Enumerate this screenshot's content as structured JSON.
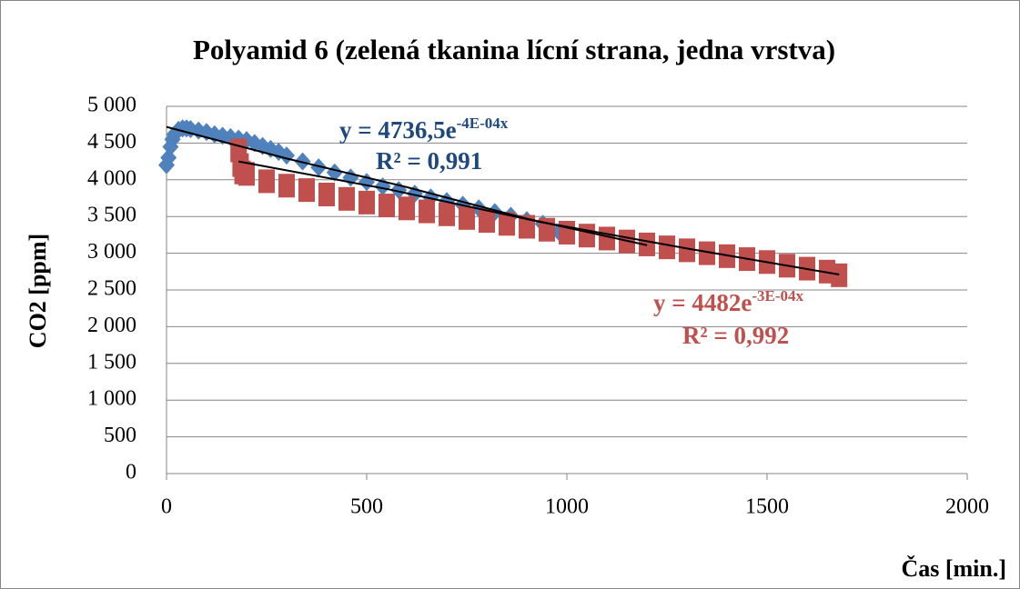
{
  "chart_data": {
    "type": "scatter",
    "title": "Polyamid 6 (zelená tkanina lícní strana, jedna vrstva)",
    "x_label": "Čas [min.]",
    "y_label": "CO2 [ppm]",
    "xlim": [
      0,
      2000
    ],
    "xticks": [
      0,
      500,
      1000,
      1500,
      2000
    ],
    "ylim": [
      0,
      5000
    ],
    "yticks": [
      0,
      500,
      {
        "value": 1000,
        "label": "1 000"
      },
      {
        "value": 1500,
        "label": "1 500"
      },
      {
        "value": 2000,
        "label": "2 000"
      },
      {
        "value": 2500,
        "label": "2 500"
      },
      {
        "value": 3000,
        "label": "3 000"
      },
      {
        "value": 3500,
        "label": "3 500"
      },
      {
        "value": 4000,
        "label": "4 000"
      },
      {
        "value": 4500,
        "label": "4 500"
      },
      {
        "value": 5000,
        "label": "5 000"
      }
    ],
    "grid": true,
    "series": [
      {
        "color": "#4f81bd",
        "marker": "diamond",
        "x": [
          0,
          5,
          10,
          15,
          20,
          30,
          40,
          50,
          60,
          80,
          100,
          120,
          140,
          160,
          180,
          200,
          220,
          240,
          260,
          280,
          300,
          340,
          380,
          420,
          460,
          500,
          540,
          580,
          620,
          660,
          700,
          740,
          780,
          820,
          860,
          900,
          940,
          980
        ],
        "values": [
          4200,
          4300,
          4450,
          4550,
          4620,
          4680,
          4700,
          4700,
          4690,
          4670,
          4650,
          4620,
          4600,
          4580,
          4560,
          4540,
          4500,
          4460,
          4420,
          4380,
          4330,
          4250,
          4170,
          4100,
          4030,
          3970,
          3910,
          3860,
          3810,
          3760,
          3710,
          3660,
          3610,
          3560,
          3510,
          3450,
          3400,
          3290
        ]
      },
      {
        "color": "#c0504d",
        "marker": "square",
        "x": [
          180,
          185,
          190,
          200,
          250,
          300,
          350,
          400,
          450,
          500,
          550,
          600,
          650,
          700,
          750,
          800,
          850,
          900,
          950,
          1000,
          1050,
          1100,
          1150,
          1200,
          1250,
          1300,
          1350,
          1400,
          1450,
          1500,
          1550,
          1600,
          1650,
          1680
        ],
        "values": [
          4400,
          4200,
          4100,
          4080,
          3980,
          3920,
          3860,
          3800,
          3740,
          3690,
          3650,
          3610,
          3570,
          3530,
          3480,
          3440,
          3400,
          3360,
          3320,
          3280,
          3240,
          3200,
          3160,
          3120,
          3080,
          3040,
          3000,
          2960,
          2920,
          2880,
          2830,
          2790,
          2750,
          2700
        ]
      }
    ],
    "trendlines": [
      {
        "color": "#000000",
        "x": [
          0,
          300,
          600,
          900,
          1200
        ],
        "values": [
          4720,
          4290,
          3900,
          3470,
          3110
        ]
      },
      {
        "color": "#000000",
        "x": [
          180,
          555,
          930,
          1305,
          1680
        ],
        "values": [
          4250,
          3870,
          3430,
          3060,
          2710
        ]
      }
    ],
    "annotations": [
      {
        "text": "y = 4736,5e",
        "sup": "-4E-04x",
        "color": "#1f497d"
      },
      {
        "text": "R² = 0,991",
        "color": "#1f497d"
      },
      {
        "text": "y = 4482e",
        "sup": "-3E-04x",
        "color": "#c0504d"
      },
      {
        "text": "R² = 0,992",
        "color": "#c0504d"
      }
    ]
  }
}
